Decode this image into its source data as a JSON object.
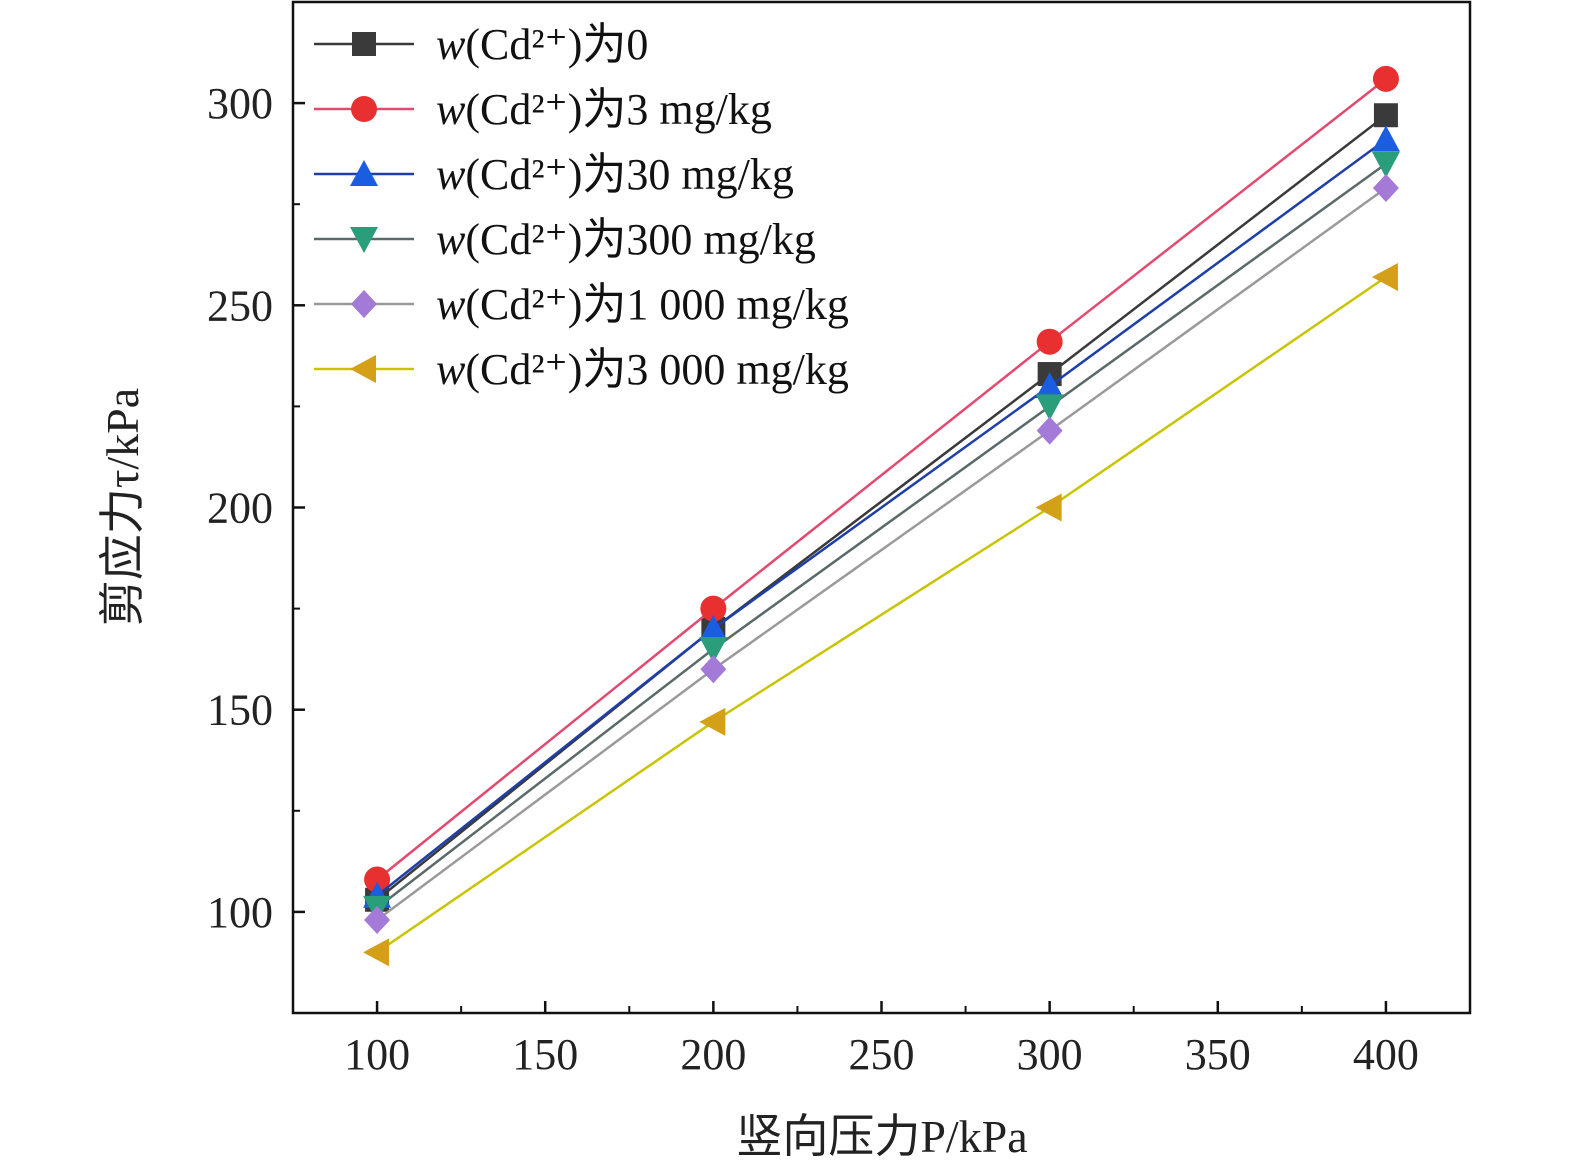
{
  "chart_data": {
    "type": "line",
    "xlabel": "竖向压力P/kPa",
    "ylabel": "剪应力τ/kPa",
    "xlim": [
      75,
      425
    ],
    "ylim": [
      75,
      325
    ],
    "x_ticks": [
      100,
      150,
      200,
      250,
      300,
      350,
      400
    ],
    "y_ticks": [
      100,
      150,
      200,
      250,
      300
    ],
    "grid": false,
    "legend_position": "top-left",
    "x": [
      100,
      200,
      300,
      400
    ],
    "series": [
      {
        "name": "w(Cd²⁺)为0",
        "legend_prefix": "w",
        "legend_suffix": "(Cd²⁺)为0",
        "values": [
          103,
          170,
          233,
          297
        ],
        "color": "#3a3a3a",
        "marker": "square"
      },
      {
        "name": "w(Cd²⁺)为3 mg/kg",
        "legend_prefix": "w",
        "legend_suffix": "(Cd²⁺)为3 mg/kg",
        "values": [
          108,
          175,
          241,
          306
        ],
        "color": "#e83030",
        "line_color": "#e24a70",
        "marker": "circle"
      },
      {
        "name": "w(Cd²⁺)为30 mg/kg",
        "legend_prefix": "w",
        "legend_suffix": "(Cd²⁺)为30 mg/kg",
        "values": [
          104,
          170,
          230,
          291
        ],
        "color": "#1a5de0",
        "line_color": "#1e3fa8",
        "marker": "triangle-up"
      },
      {
        "name": "w(Cd²⁺)为300 mg/kg",
        "legend_prefix": "w",
        "legend_suffix": "(Cd²⁺)为300 mg/kg",
        "values": [
          101,
          165,
          225,
          285
        ],
        "color": "#2a9d7a",
        "line_color": "#5a6a6a",
        "marker": "triangle-down"
      },
      {
        "name": "w(Cd²⁺)为1 000 mg/kg",
        "legend_prefix": "w",
        "legend_suffix": "(Cd²⁺)为1 000 mg/kg",
        "values": [
          98,
          160,
          219,
          279
        ],
        "color": "#a37ad8",
        "line_color": "#9a9a9a",
        "marker": "diamond"
      },
      {
        "name": "w(Cd²⁺)为3 000 mg/kg",
        "legend_prefix": "w",
        "legend_suffix": "(Cd²⁺)为3 000 mg/kg",
        "values": [
          90,
          147,
          200,
          257
        ],
        "color": "#d4a017",
        "line_color": "#c9c400",
        "marker": "triangle-left"
      }
    ]
  }
}
